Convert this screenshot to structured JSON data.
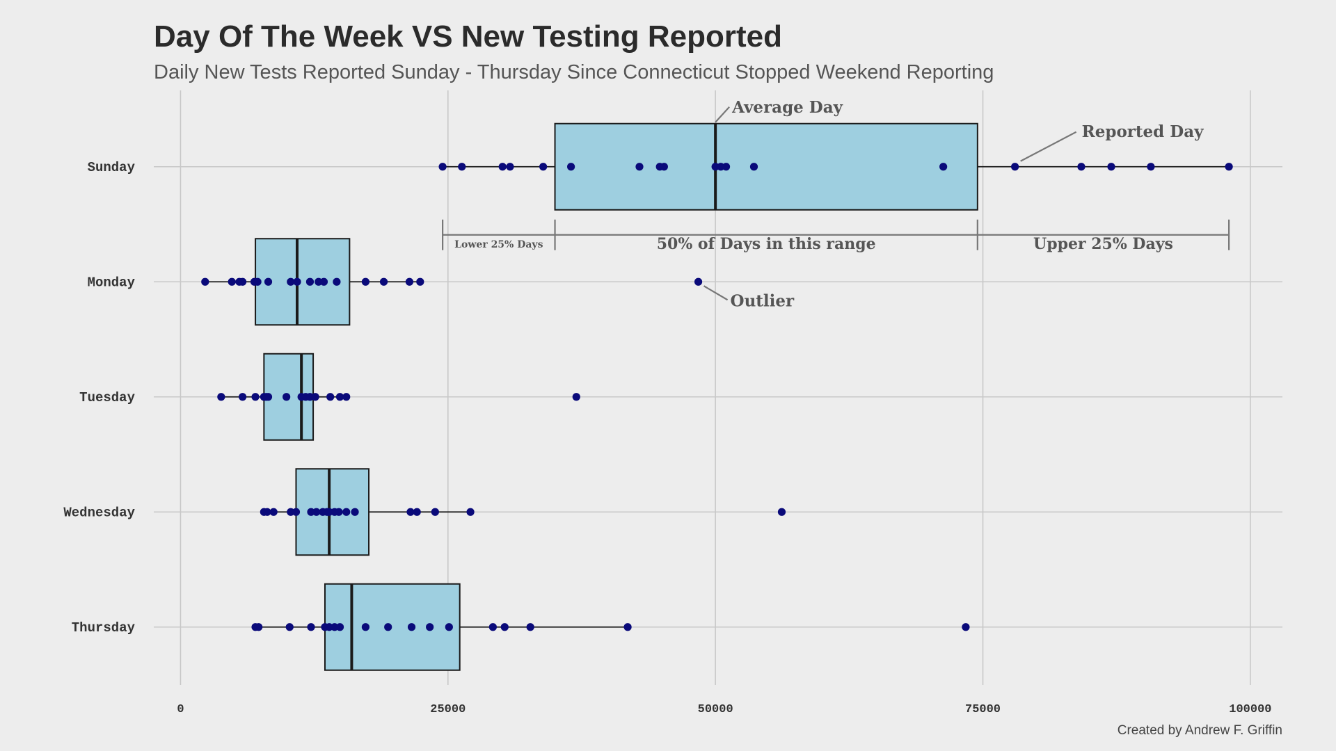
{
  "chart_data": {
    "type": "boxplot",
    "title": "Day Of The Week VS New Testing Reported",
    "subtitle": "Daily New Tests Reported Sunday - Thursday Since Connecticut Stopped Weekend Reporting",
    "caption": "Created by Andrew F. Griffin",
    "xlabel": "",
    "ylabel": "",
    "xlim": [
      -2500,
      103000
    ],
    "x_ticks": [
      0,
      25000,
      50000,
      75000,
      100000
    ],
    "x_tick_labels": [
      "0",
      "25000",
      "50000",
      "75000",
      "100000"
    ],
    "grid": true,
    "colors": {
      "box_fill": "#9ecfe0",
      "point": "#0a0a7a",
      "background": "#ededed",
      "grid": "#c8c8c8",
      "annotation": "#777777"
    },
    "categories": [
      "Sunday",
      "Monday",
      "Tuesday",
      "Wednesday",
      "Thursday"
    ],
    "series": [
      {
        "category": "Sunday",
        "whisker_low": 24500,
        "q1": 35000,
        "median": 50000,
        "q3": 74500,
        "whisker_high": 98000,
        "points": [
          24500,
          26300,
          30100,
          30800,
          33900,
          36500,
          42900,
          44800,
          45200,
          50000,
          50500,
          51000,
          53600,
          71300,
          78000,
          84200,
          87000,
          90700,
          98000
        ]
      },
      {
        "category": "Monday",
        "whisker_low": 2300,
        "q1": 7000,
        "median": 10900,
        "q3": 15800,
        "whisker_high": 22400,
        "points": [
          2300,
          4800,
          5500,
          5800,
          6900,
          7200,
          8200,
          10300,
          10900,
          12100,
          12900,
          13400,
          14600,
          17300,
          19000,
          21400,
          22400,
          48400
        ]
      },
      {
        "category": "Tuesday",
        "whisker_low": 3800,
        "q1": 7800,
        "median": 11300,
        "q3": 12400,
        "whisker_high": 15500,
        "points": [
          3800,
          5800,
          7000,
          7800,
          8000,
          8200,
          9900,
          11300,
          11700,
          12100,
          12600,
          14000,
          14900,
          15500,
          37000
        ]
      },
      {
        "category": "Wednesday",
        "whisker_low": 7800,
        "q1": 10800,
        "median": 13900,
        "q3": 17600,
        "whisker_high": 27100,
        "points": [
          7800,
          8100,
          8700,
          10300,
          10800,
          12200,
          12700,
          13300,
          13700,
          13900,
          14400,
          14800,
          15500,
          16300,
          21500,
          22100,
          23800,
          27100,
          56200
        ]
      },
      {
        "category": "Thursday",
        "whisker_low": 7000,
        "q1": 13500,
        "median": 16000,
        "q3": 26100,
        "whisker_high": 41800,
        "points": [
          7000,
          7300,
          10200,
          12200,
          13500,
          13900,
          14400,
          14900,
          17300,
          19400,
          21600,
          23300,
          25100,
          29200,
          30300,
          32700,
          41800,
          73400
        ]
      }
    ],
    "annotations": {
      "average_day": "Average Day",
      "reported_day": "Reported Day",
      "lower_25": "Lower 25% Days",
      "middle_50": "50% of Days in this range",
      "upper_25": "Upper 25% Days",
      "outlier": "Outlier"
    }
  }
}
